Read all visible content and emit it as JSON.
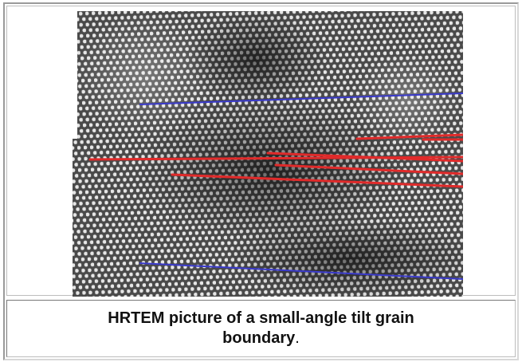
{
  "figure": {
    "caption": {
      "text": "HRTEM picture of a small-angle tilt grain boundary",
      "punctuation": "."
    }
  }
}
